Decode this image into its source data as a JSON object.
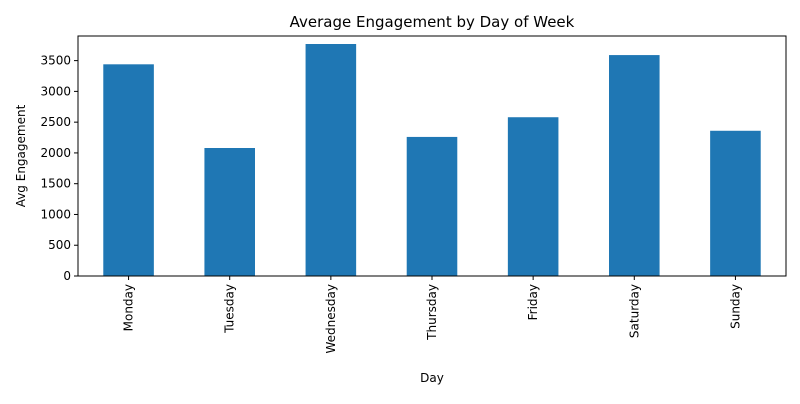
{
  "chart_data": {
    "type": "bar",
    "title": "Average Engagement by Day of Week",
    "xlabel": "Day",
    "ylabel": "Avg Engagement",
    "categories": [
      "Monday",
      "Tuesday",
      "Wednesday",
      "Thursday",
      "Friday",
      "Saturday",
      "Sunday"
    ],
    "values": [
      3440,
      2080,
      3770,
      2260,
      2580,
      3590,
      2360
    ],
    "ylim": [
      0,
      3900
    ],
    "yticks": [
      0,
      500,
      1000,
      1500,
      2000,
      2500,
      3000,
      3500
    ],
    "grid": false,
    "legend": "none",
    "bar_color": "#1f77b4",
    "tick_label_rotation_x": 90
  }
}
